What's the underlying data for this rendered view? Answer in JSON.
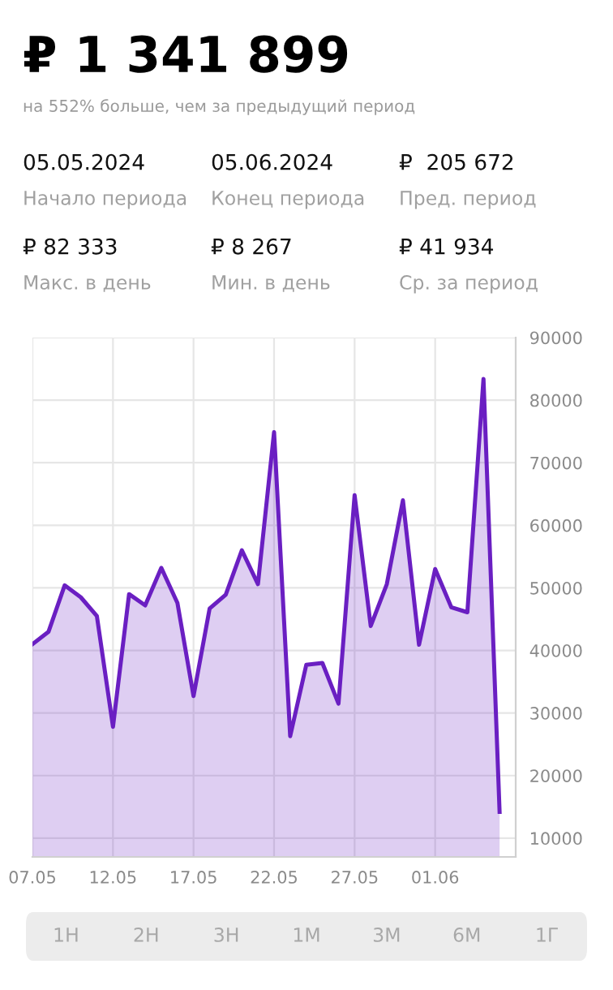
{
  "chart_data": {
    "type": "area",
    "title": "₽ 1 341 899",
    "subtitle": "на 552% больше, чем за предыдущий период",
    "x": [
      "2024-05-07",
      "2024-05-08",
      "2024-05-09",
      "2024-05-10",
      "2024-05-11",
      "2024-05-12",
      "2024-05-13",
      "2024-05-14",
      "2024-05-15",
      "2024-05-16",
      "2024-05-17",
      "2024-05-18",
      "2024-05-19",
      "2024-05-20",
      "2024-05-21",
      "2024-05-22",
      "2024-05-23",
      "2024-05-24",
      "2024-05-25",
      "2024-05-26",
      "2024-05-27",
      "2024-05-28",
      "2024-05-29",
      "2024-05-30",
      "2024-05-31",
      "2024-06-01",
      "2024-06-02",
      "2024-06-03",
      "2024-06-04",
      "2024-06-05"
    ],
    "series": [
      {
        "color": "#6a1fc2",
        "values": [
          41000,
          43000,
          50400,
          48500,
          45500,
          27800,
          49000,
          47200,
          53200,
          47600,
          32700,
          46700,
          48900,
          56000,
          50600,
          74900,
          26300,
          37700,
          38000,
          31500,
          64800,
          43900,
          50600,
          64000,
          40900,
          53000,
          46900,
          46100,
          83400,
          14200
        ]
      }
    ],
    "xlim": [
      "2024-05-07",
      "2024-06-06"
    ],
    "xticks": [
      {
        "value": "2024-05-07",
        "label": "07.05"
      },
      {
        "value": "2024-05-12",
        "label": "12.05"
      },
      {
        "value": "2024-05-17",
        "label": "17.05"
      },
      {
        "value": "2024-05-22",
        "label": "22.05"
      },
      {
        "value": "2024-05-27",
        "label": "27.05"
      },
      {
        "value": "2024-06-01",
        "label": "01.06"
      }
    ],
    "ylim": [
      7000,
      90000
    ],
    "yticks": [
      10000,
      20000,
      30000,
      40000,
      50000,
      60000,
      70000,
      80000,
      90000
    ],
    "grid": true,
    "legend": false,
    "annotations": [
      "05.05.2024",
      "Начало периода",
      "05.06.2024",
      "Конец периода",
      "₽  205 672",
      "Пред. период",
      "₽ 82 333",
      "Макс. в день",
      "₽ 8 267",
      "Мин. в день",
      "₽ 41 934",
      "Ср. за период",
      "1Н",
      "2Н",
      "3Н",
      "1М",
      "3М",
      "6М",
      "1Г"
    ]
  }
}
